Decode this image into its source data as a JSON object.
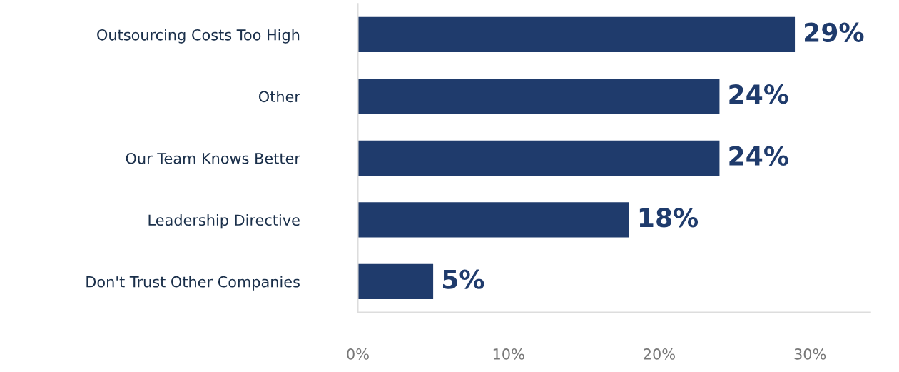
{
  "chart_data": {
    "type": "bar",
    "orientation": "horizontal",
    "categories": [
      "Outsourcing Costs Too High",
      "Other",
      "Our Team Knows Better",
      "Leadership Directive",
      "Don't Trust Other Companies"
    ],
    "values": [
      29,
      24,
      24,
      18,
      5
    ],
    "value_labels": [
      "29%",
      "24%",
      "24%",
      "18%",
      "5%"
    ],
    "color": "#1f3b6c",
    "xlim": [
      0,
      34
    ],
    "xticks": [
      {
        "value": 0,
        "label": "0%"
      },
      {
        "value": 10,
        "label": "10%"
      },
      {
        "value": 20,
        "label": "20%"
      },
      {
        "value": 30,
        "label": "30%"
      }
    ],
    "grid": false,
    "legend": false
  }
}
